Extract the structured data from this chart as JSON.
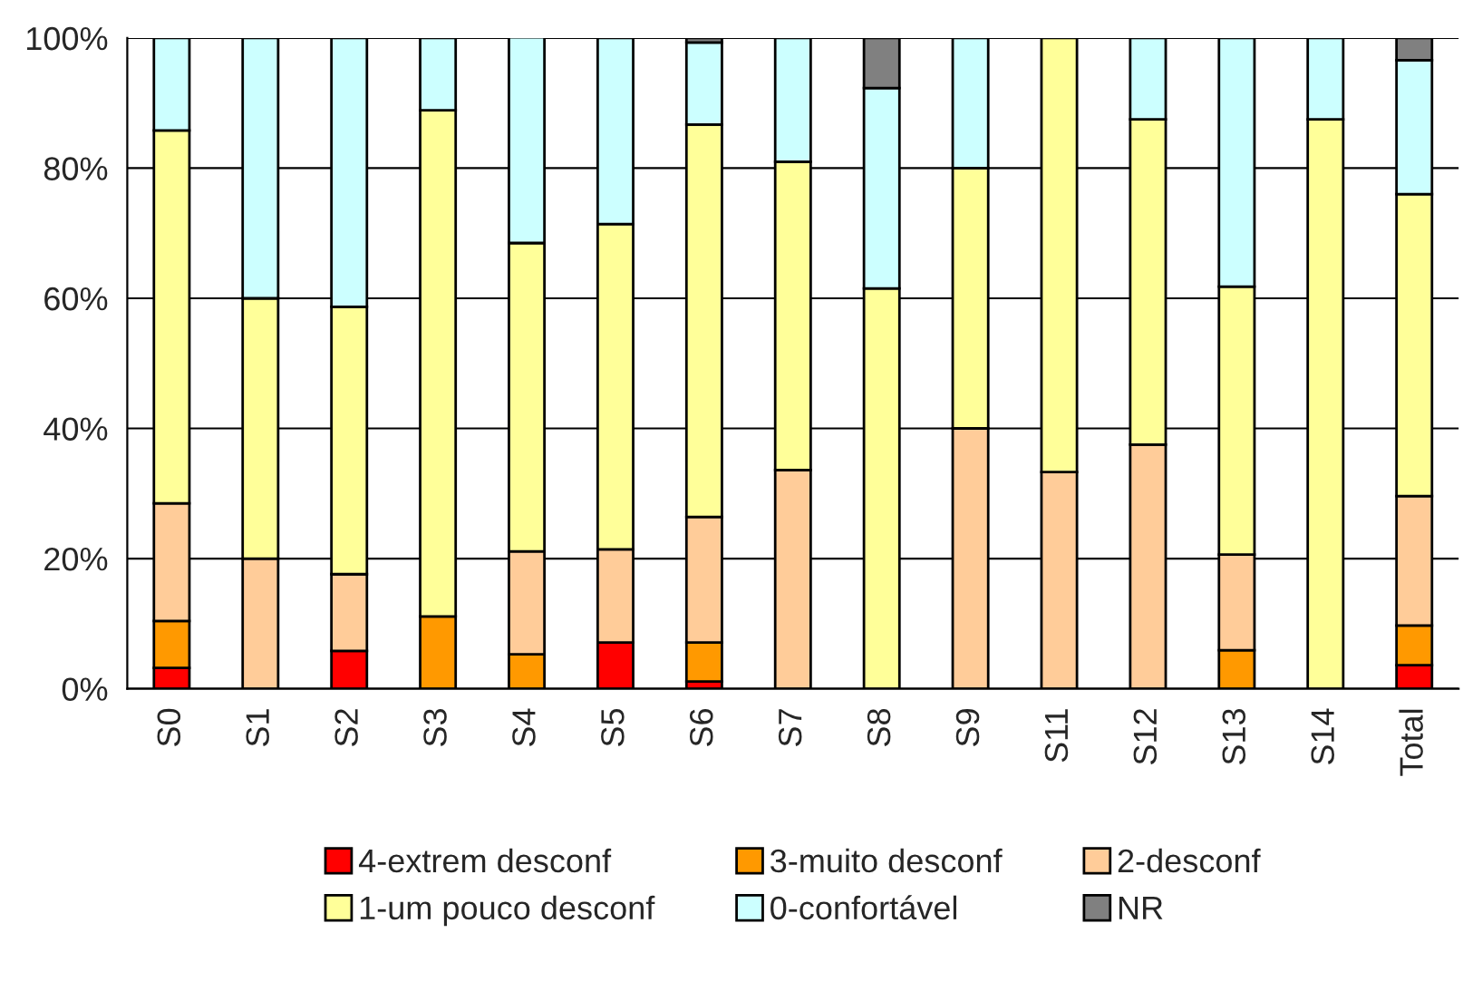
{
  "chart_data": {
    "type": "bar",
    "stacked": true,
    "categories": [
      "S0",
      "S1",
      "S2",
      "S3",
      "S4",
      "S5",
      "S6",
      "S7",
      "S8",
      "S9",
      "S11",
      "S12",
      "S13",
      "S14",
      "Total"
    ],
    "series": [
      {
        "name": "4-extrem desconf",
        "color": "#ff0000",
        "values": [
          3.2,
          null,
          5.8,
          null,
          null,
          7.1,
          1.1,
          null,
          null,
          null,
          null,
          null,
          null,
          null,
          3.6
        ]
      },
      {
        "name": "3-muito desconf",
        "color": "#ff9900",
        "values": [
          7.2,
          null,
          null,
          11.1,
          5.3,
          null,
          6.0,
          null,
          null,
          null,
          null,
          null,
          5.9,
          null,
          6.1
        ]
      },
      {
        "name": "2-desconf",
        "color": "#ffcc99",
        "values": [
          18.1,
          20,
          11.8,
          null,
          15.8,
          14.3,
          19.3,
          33.6,
          null,
          40,
          33.3,
          37.5,
          14.7,
          null,
          19.9
        ]
      },
      {
        "name": "1-um pouco desconf",
        "color": "#ffff99",
        "values": [
          57.3,
          40,
          41.1,
          77.8,
          47.4,
          50,
          60.3,
          47.4,
          61.5,
          40,
          66.7,
          50,
          41.2,
          87.5,
          46.4
        ]
      },
      {
        "name": "0-confortável",
        "color": "#ccffff",
        "values": [
          14.2,
          40,
          41.3,
          11.1,
          31.6,
          28.6,
          12.6,
          19.0,
          30.8,
          20,
          null,
          12.5,
          38.2,
          12.5,
          20.6
        ]
      },
      {
        "name": "NR",
        "color": "#808080",
        "values": [
          null,
          null,
          null,
          null,
          null,
          null,
          0.7,
          null,
          7.7,
          null,
          null,
          null,
          null,
          null,
          3.4
        ]
      }
    ],
    "ylim": [
      0,
      100
    ],
    "yticks": [
      {
        "value": 0,
        "label": "0%"
      },
      {
        "value": 20,
        "label": "20%"
      },
      {
        "value": 40,
        "label": "40%"
      },
      {
        "value": 60,
        "label": "60%"
      },
      {
        "value": 80,
        "label": "80%"
      },
      {
        "value": 100,
        "label": "100%"
      }
    ],
    "grid": "y",
    "legend": "bottom"
  }
}
